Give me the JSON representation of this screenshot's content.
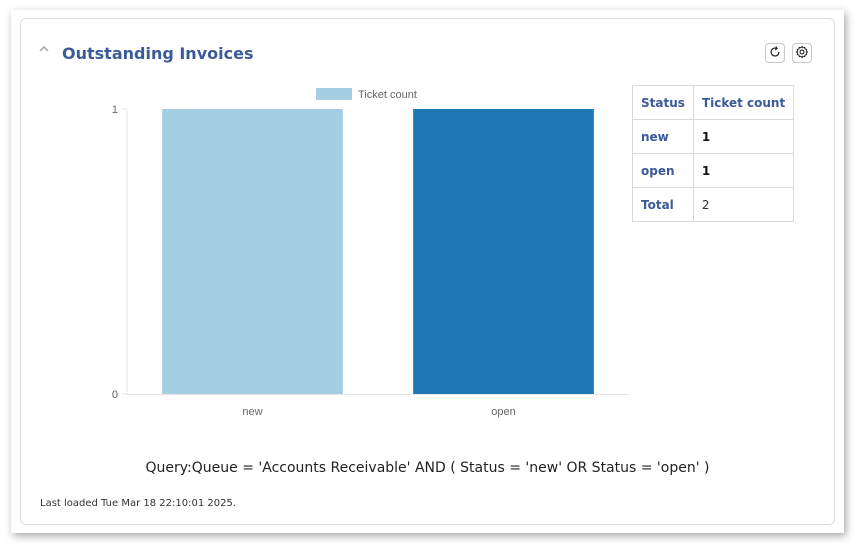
{
  "header": {
    "title": "Outstanding Invoices",
    "collapse_icon": "chevron-up-icon",
    "reload_icon": "reload-icon",
    "settings_icon": "gear-icon"
  },
  "chart_data": {
    "type": "bar",
    "categories": [
      "new",
      "open"
    ],
    "series": [
      {
        "name": "Ticket count",
        "values": [
          1,
          1
        ]
      }
    ],
    "bar_colors": [
      "#a6cee3",
      "#1f78b4"
    ],
    "legend_color": "#a6cee3",
    "ylim": [
      0,
      1
    ],
    "yticks": [
      "1",
      "0"
    ],
    "legend_position": "top",
    "grid": false
  },
  "table": {
    "headers": [
      "Status",
      "Ticket count"
    ],
    "rows": [
      {
        "status": "new",
        "count": "1"
      },
      {
        "status": "open",
        "count": "1"
      }
    ],
    "total_label": "Total",
    "total_value": "2"
  },
  "query_text": "Query:Queue = 'Accounts Receivable' AND ( Status = 'new' OR Status = 'open' )",
  "last_loaded": "Last loaded Tue Mar 18 22:10:01 2025."
}
